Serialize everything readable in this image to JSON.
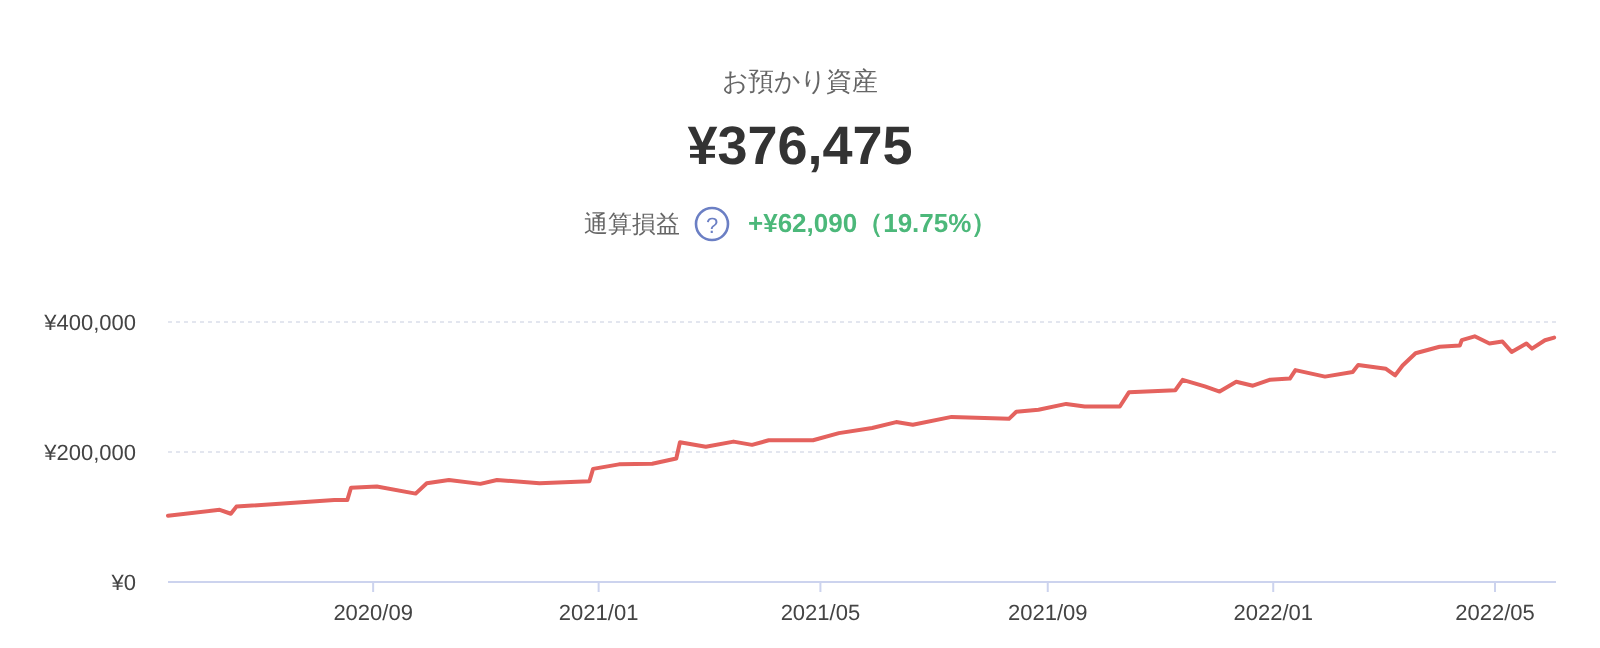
{
  "chart_data": {
    "type": "line",
    "title": "お預かり資産",
    "subtitle": "¥376,475",
    "annotations": [
      "通算損益",
      "?",
      "+¥62,090（19.75%）"
    ],
    "x": [
      "2020-05-13",
      "2020-06-10",
      "2020-06-16",
      "2020-06-19",
      "2020-08-11",
      "2020-08-18",
      "2020-08-20",
      "2020-09-03",
      "2020-09-24",
      "2020-09-30",
      "2020-10-12",
      "2020-10-29",
      "2020-11-07",
      "2020-11-30",
      "2020-12-27",
      "2020-12-29",
      "2021-01-12",
      "2021-01-30",
      "2021-02-12",
      "2021-02-14",
      "2021-02-28",
      "2021-03-15",
      "2021-03-25",
      "2021-04-03",
      "2021-04-27",
      "2021-05-11",
      "2021-05-29",
      "2021-06-11",
      "2021-06-20",
      "2021-07-11",
      "2021-08-11",
      "2021-08-15",
      "2021-08-27",
      "2021-09-11",
      "2021-09-21",
      "2021-10-10",
      "2021-10-15",
      "2021-11-09",
      "2021-11-13",
      "2021-11-25",
      "2021-12-03",
      "2021-12-12",
      "2021-12-21",
      "2021-12-30",
      "2022-01-10",
      "2022-01-13",
      "2022-01-29",
      "2022-02-13",
      "2022-02-16",
      "2022-03-03",
      "2022-03-08",
      "2022-03-12",
      "2022-03-19",
      "2022-04-01",
      "2022-04-12",
      "2022-04-13",
      "2022-04-20",
      "2022-04-28",
      "2022-05-05",
      "2022-05-10",
      "2022-05-18",
      "2022-05-21",
      "2022-05-28",
      "2022-06-02"
    ],
    "series": [
      {
        "color": "#e4625e",
        "values": [
          102000,
          111000,
          105000,
          116000,
          126000,
          126000,
          145000,
          147000,
          136000,
          152000,
          157000,
          151000,
          157000,
          152000,
          155000,
          174000,
          181000,
          182000,
          190000,
          215000,
          208000,
          216000,
          211000,
          218000,
          218000,
          229000,
          237000,
          246000,
          242000,
          254000,
          251000,
          262000,
          265000,
          274000,
          270000,
          270000,
          292000,
          295000,
          311000,
          301000,
          293000,
          308000,
          302000,
          311000,
          313000,
          326000,
          316000,
          323000,
          334000,
          328000,
          318000,
          333000,
          352000,
          362000,
          364000,
          372000,
          378000,
          367000,
          370000,
          354000,
          367000,
          359000,
          372000,
          376000
        ]
      }
    ],
    "xlim": [
      "2020-05-13",
      "2022-06-03"
    ],
    "xticks": [
      {
        "value": "2020-09-01",
        "label": "2020/09"
      },
      {
        "value": "2021-01-01",
        "label": "2021/01"
      },
      {
        "value": "2021-05-01",
        "label": "2021/05"
      },
      {
        "value": "2021-09-01",
        "label": "2021/09"
      },
      {
        "value": "2022-01-01",
        "label": "2022/01"
      },
      {
        "value": "2022-05-01",
        "label": "2022/05"
      }
    ],
    "ylim": [
      0,
      400000
    ],
    "yticks": [
      {
        "value": 0,
        "label": "¥0"
      },
      {
        "value": 200000,
        "label": "¥200,000"
      },
      {
        "value": 400000,
        "label": "¥400,000"
      }
    ],
    "grid": "y",
    "marker": "none",
    "line_style": "solid"
  }
}
